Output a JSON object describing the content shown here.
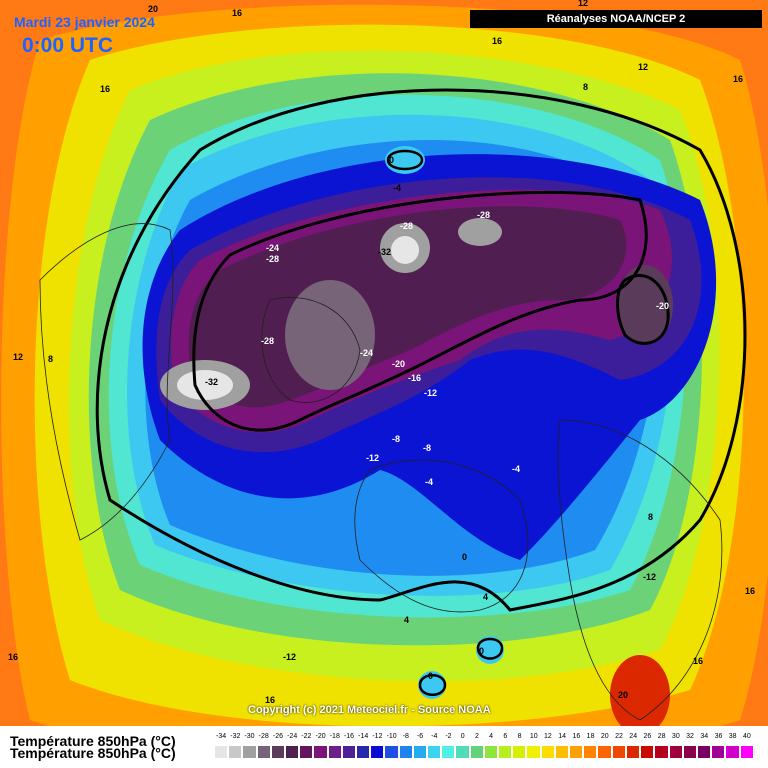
{
  "header": {
    "date": "Mardi 23 janvier 2024",
    "time": "0:00 UTC",
    "source": "Réanalyses NOAA/NCEP 2"
  },
  "copyright": "Copyright (c) 2021 Meteociel.fr - Source NOAA",
  "legend": {
    "title": "Température 850hPa (°C)",
    "ticks": [
      "-34",
      "-32",
      "-30",
      "-28",
      "-26",
      "-24",
      "-22",
      "-20",
      "-18",
      "-16",
      "-14",
      "-12",
      "-10",
      "-8",
      "-6",
      "-4",
      "-2",
      "0",
      "2",
      "4",
      "6",
      "8",
      "10",
      "12",
      "14",
      "16",
      "18",
      "20",
      "22",
      "24",
      "26",
      "28",
      "30",
      "32",
      "34",
      "36",
      "38",
      "40"
    ],
    "colors": [
      "#e6e6e6",
      "#c8c8c8",
      "#a0a0a0",
      "#786478",
      "#5a3c5a",
      "#501e50",
      "#64145a",
      "#7a1478",
      "#6e1e8c",
      "#501e96",
      "#2828aa",
      "#0a0ad2",
      "#1e50e6",
      "#1e82f0",
      "#28aaf0",
      "#3cd2f0",
      "#50f0e6",
      "#50dcb4",
      "#64d278",
      "#8ce63c",
      "#b4f01e",
      "#d2f000",
      "#f0f000",
      "#ffdc00",
      "#ffbe00",
      "#ffa000",
      "#ff8200",
      "#ff6400",
      "#f04600",
      "#dc2800",
      "#c80a00",
      "#b4001e",
      "#a0003c",
      "#8c0050",
      "#780064",
      "#a00096",
      "#d200c8",
      "#ff00ff"
    ]
  },
  "map": {
    "labels": [
      "20",
      "16",
      "16",
      "16",
      "12",
      "12",
      "16",
      "8",
      "0",
      "-4",
      "-28",
      "-28",
      "-24",
      "-28",
      "-32",
      "-28",
      "-24",
      "-20",
      "-16",
      "-12",
      "-20",
      "-32",
      "-8",
      "-12",
      "-8",
      "-4",
      "-4",
      "0",
      "8",
      "-12",
      "16",
      "12",
      "8",
      "12",
      "4",
      "0",
      "16",
      "-12",
      "16",
      "20",
      "16",
      "4",
      "0"
    ]
  }
}
